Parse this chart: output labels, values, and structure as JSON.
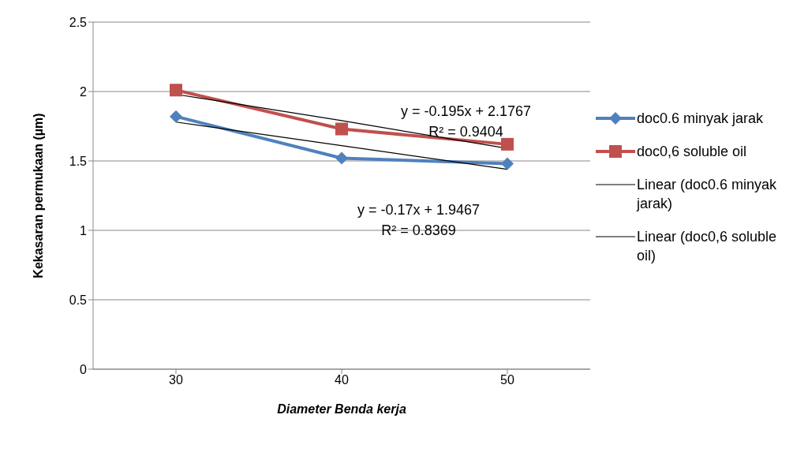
{
  "chart_data": {
    "type": "line",
    "xlabel": "Diameter Benda kerja",
    "ylabel": "Kekasaran permukaan (µm)",
    "categories": [
      "30",
      "40",
      "50"
    ],
    "series": [
      {
        "name": "doc0.6 minyak jarak",
        "color": "#4f81bd",
        "values": [
          1.82,
          1.52,
          1.48
        ],
        "marker": "diamond"
      },
      {
        "name": "doc0,6 soluble oil",
        "color": "#c0504d",
        "values": [
          2.01,
          1.73,
          1.62
        ],
        "marker": "square"
      },
      {
        "name": "Linear (doc0.6 minyak jarak)",
        "color": "#000000",
        "values": [
          1.78,
          1.61,
          1.44
        ],
        "marker": "none"
      },
      {
        "name": "Linear (doc0,6 soluble oil)",
        "color": "#000000",
        "values": [
          1.98,
          1.79,
          1.59
        ],
        "marker": "none"
      }
    ],
    "ylim": [
      0,
      2.5
    ],
    "yticks": [
      0,
      0.5,
      1,
      1.5,
      2,
      2.5
    ],
    "grid": "y",
    "legend": "right",
    "line_style": "solid",
    "annotations": [
      "y = -0.195x + 2.1767\nR² = 0.9404",
      "y = -0.17x + 1.9467\nR² = 0.8369"
    ]
  }
}
